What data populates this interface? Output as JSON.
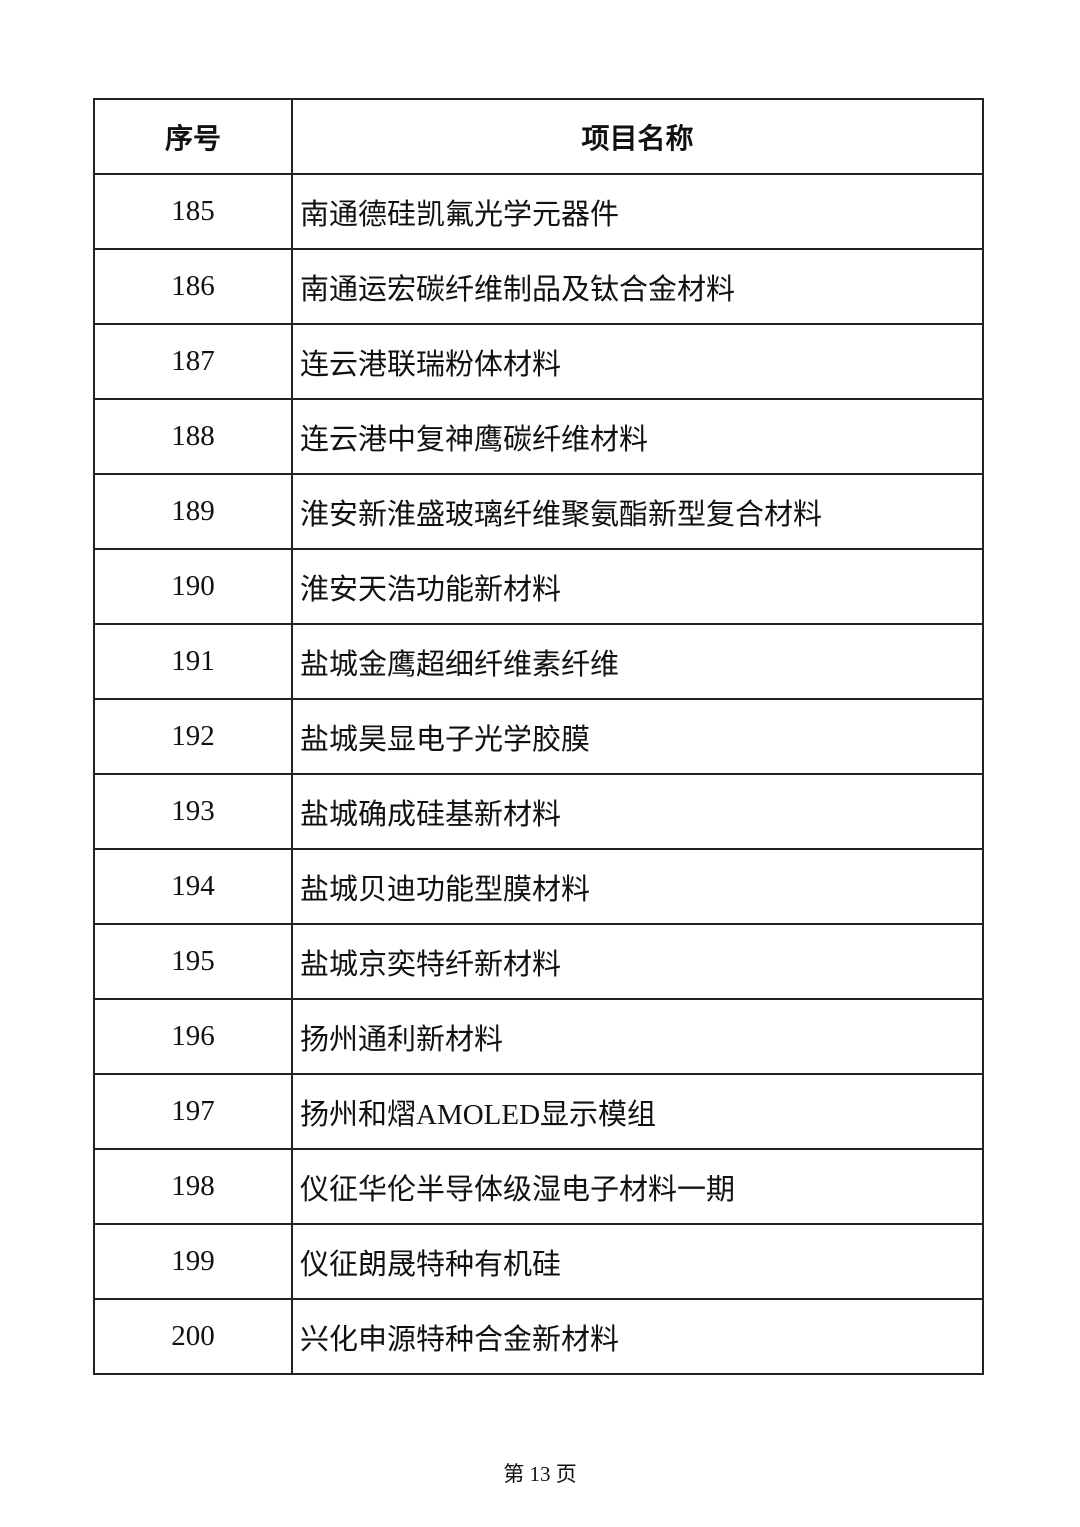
{
  "table": {
    "headers": [
      "序号",
      "项目名称"
    ],
    "rows": [
      {
        "no": "185",
        "name": "南通德硅凯氟光学元器件"
      },
      {
        "no": "186",
        "name": "南通运宏碳纤维制品及钛合金材料"
      },
      {
        "no": "187",
        "name": "连云港联瑞粉体材料"
      },
      {
        "no": "188",
        "name": "连云港中复神鹰碳纤维材料"
      },
      {
        "no": "189",
        "name": "淮安新淮盛玻璃纤维聚氨酯新型复合材料"
      },
      {
        "no": "190",
        "name": "淮安天浩功能新材料"
      },
      {
        "no": "191",
        "name": "盐城金鹰超细纤维素纤维"
      },
      {
        "no": "192",
        "name": "盐城昊显电子光学胶膜"
      },
      {
        "no": "193",
        "name": "盐城确成硅基新材料"
      },
      {
        "no": "194",
        "name": "盐城贝迪功能型膜材料"
      },
      {
        "no": "195",
        "name": "盐城京奕特纤新材料"
      },
      {
        "no": "196",
        "name": "扬州通利新材料"
      },
      {
        "no": "197",
        "name": "扬州和熠AMOLED显示模组"
      },
      {
        "no": "198",
        "name": "仪征华伦半导体级湿电子材料一期"
      },
      {
        "no": "199",
        "name": "仪征朗晟特种有机硅"
      },
      {
        "no": "200",
        "name": "兴化申源特种合金新材料"
      }
    ]
  },
  "footer": {
    "page_label": "第 13 页"
  }
}
